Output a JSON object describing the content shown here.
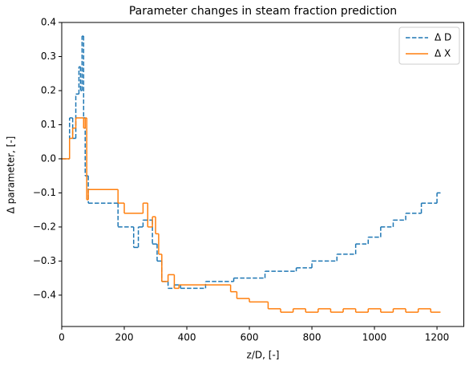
{
  "chart_data": {
    "type": "line",
    "drawstyle": "steps-post",
    "title": "Parameter changes in steam fraction prediction",
    "xlabel": "z/D, [-]",
    "ylabel": "Δ parameter, [-]",
    "xlim": [
      0,
      1287
    ],
    "ylim": [
      -0.492,
      0.4
    ],
    "xticks": [
      0,
      200,
      400,
      600,
      800,
      1000,
      1200
    ],
    "yticks": [
      {
        "value": 0.4,
        "label": "0.4"
      },
      {
        "value": 0.3,
        "label": "0.3"
      },
      {
        "value": 0.2,
        "label": "0.2"
      },
      {
        "value": 0.1,
        "label": "0.1"
      },
      {
        "value": 0,
        "label": "0.0"
      },
      {
        "value": -0.1,
        "label": "−0.1"
      },
      {
        "value": -0.2,
        "label": "−0.2"
      },
      {
        "value": -0.3,
        "label": "−0.3"
      },
      {
        "value": -0.4,
        "label": "−0.4"
      }
    ],
    "legend": "upper right",
    "series": [
      {
        "name": "Δ D",
        "color": "#1f77b4",
        "dash": true,
        "x": [
          0,
          25,
          35,
          45,
          55,
          60,
          65,
          70,
          75,
          85,
          180,
          230,
          245,
          260,
          290,
          305,
          320,
          340,
          360,
          380,
          460,
          550,
          650,
          750,
          800,
          880,
          940,
          980,
          1020,
          1060,
          1100,
          1150,
          1200,
          1210
        ],
        "values": [
          0,
          0.12,
          0.06,
          0.19,
          0.27,
          0.2,
          0.36,
          0.12,
          -0.05,
          -0.13,
          -0.2,
          -0.26,
          -0.2,
          -0.18,
          -0.25,
          -0.3,
          -0.36,
          -0.38,
          -0.37,
          -0.38,
          -0.36,
          -0.35,
          -0.33,
          -0.32,
          -0.3,
          -0.28,
          -0.25,
          -0.23,
          -0.2,
          -0.18,
          -0.16,
          -0.13,
          -0.1,
          -0.1
        ]
      },
      {
        "name": "Δ X",
        "color": "#ff7f0e",
        "dash": false,
        "x": [
          0,
          25,
          35,
          45,
          70,
          75,
          80,
          85,
          180,
          200,
          260,
          275,
          290,
          300,
          310,
          320,
          340,
          360,
          375,
          540,
          560,
          600,
          660,
          700,
          740,
          780,
          820,
          860,
          900,
          940,
          980,
          1020,
          1060,
          1100,
          1140,
          1180,
          1210
        ],
        "values": [
          0,
          0.06,
          0.09,
          0.12,
          0.09,
          0.12,
          -0.12,
          -0.09,
          -0.13,
          -0.16,
          -0.13,
          -0.2,
          -0.17,
          -0.22,
          -0.28,
          -0.36,
          -0.34,
          -0.38,
          -0.37,
          -0.39,
          -0.41,
          -0.42,
          -0.44,
          -0.45,
          -0.44,
          -0.45,
          -0.44,
          -0.45,
          -0.44,
          -0.45,
          -0.44,
          -0.45,
          -0.44,
          -0.45,
          -0.44,
          -0.45,
          -0.45
        ]
      }
    ]
  }
}
